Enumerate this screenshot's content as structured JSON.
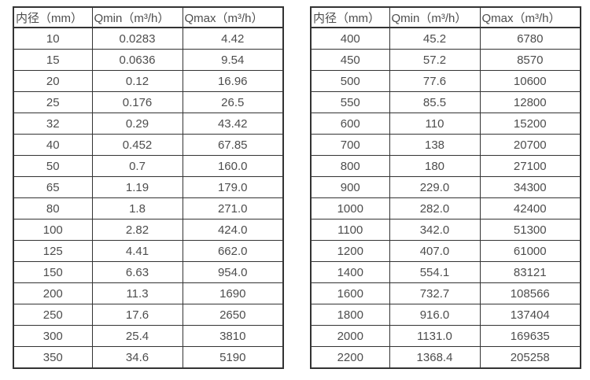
{
  "colors": {
    "background": "#ffffff",
    "table_border": "#333333",
    "text": "#4d4d4d"
  },
  "tables": [
    {
      "name": "flow-spec-small-diameters",
      "headers": [
        "内径（mm）",
        "Qmin（m³/h）",
        "Qmax（m³/h）"
      ],
      "rows": [
        [
          "10",
          "0.0283",
          "4.42"
        ],
        [
          "15",
          "0.0636",
          "9.54"
        ],
        [
          "20",
          "0.12",
          "16.96"
        ],
        [
          "25",
          "0.176",
          "26.5"
        ],
        [
          "32",
          "0.29",
          "43.42"
        ],
        [
          "40",
          "0.452",
          "67.85"
        ],
        [
          "50",
          "0.7",
          "160.0"
        ],
        [
          "65",
          "1.19",
          "179.0"
        ],
        [
          "80",
          "1.8",
          "271.0"
        ],
        [
          "100",
          "2.82",
          "424.0"
        ],
        [
          "125",
          "4.41",
          "662.0"
        ],
        [
          "150",
          "6.63",
          "954.0"
        ],
        [
          "200",
          "11.3",
          "1690"
        ],
        [
          "250",
          "17.6",
          "2650"
        ],
        [
          "300",
          "25.4",
          "3810"
        ],
        [
          "350",
          "34.6",
          "5190"
        ]
      ]
    },
    {
      "name": "flow-spec-large-diameters",
      "headers": [
        "内径（mm）",
        "Qmin（m³/h）",
        "Qmax（m³/h）"
      ],
      "rows": [
        [
          "400",
          "45.2",
          "6780"
        ],
        [
          "450",
          "57.2",
          "8570"
        ],
        [
          "500",
          "77.6",
          "10600"
        ],
        [
          "550",
          "85.5",
          "12800"
        ],
        [
          "600",
          "110",
          "15200"
        ],
        [
          "700",
          "138",
          "20700"
        ],
        [
          "800",
          "180",
          "27100"
        ],
        [
          "900",
          "229.0",
          "34300"
        ],
        [
          "1000",
          "282.0",
          "42400"
        ],
        [
          "1100",
          "342.0",
          "51300"
        ],
        [
          "1200",
          "407.0",
          "61000"
        ],
        [
          "1400",
          "554.1",
          "83121"
        ],
        [
          "1600",
          "732.7",
          "108566"
        ],
        [
          "1800",
          "916.0",
          "137404"
        ],
        [
          "2000",
          "1131.0",
          "169635"
        ],
        [
          "2200",
          "1368.4",
          "205258"
        ]
      ]
    }
  ]
}
